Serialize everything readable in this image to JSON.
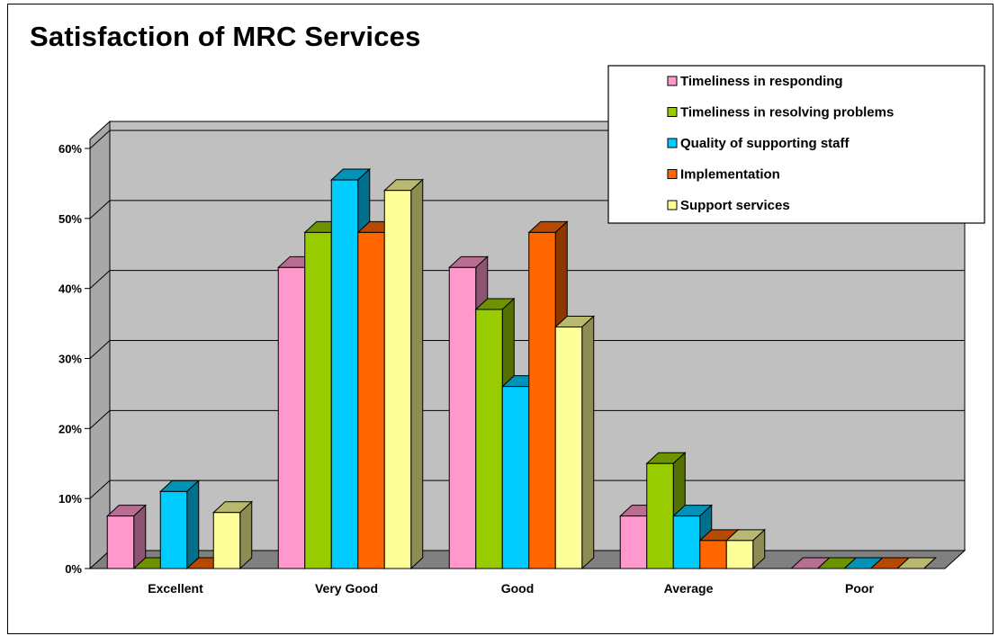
{
  "chart_data": {
    "type": "bar",
    "title": "Satisfaction of MRC Services",
    "categories": [
      "Excellent",
      "Very Good",
      "Good",
      "Average",
      "Poor"
    ],
    "series": [
      {
        "name": "Timeliness in responding",
        "color": "#ff99cc",
        "values": [
          7.5,
          43,
          43,
          7.5,
          0
        ]
      },
      {
        "name": "Timeliness in resolving problems",
        "color": "#99cc00",
        "values": [
          0,
          48,
          37,
          15,
          0
        ]
      },
      {
        "name": "Quality of supporting staff",
        "color": "#00ccff",
        "values": [
          11,
          55.5,
          26,
          7.5,
          0
        ]
      },
      {
        "name": "Implementation",
        "color": "#ff6600",
        "values": [
          0,
          48,
          48,
          4,
          0
        ]
      },
      {
        "name": "Support services",
        "color": "#ffff99",
        "values": [
          8,
          54,
          34.5,
          4,
          0
        ]
      }
    ],
    "yticks": [
      "0%",
      "10%",
      "20%",
      "30%",
      "40%",
      "50%",
      "60%"
    ],
    "ylim": [
      0,
      60
    ],
    "grid": true,
    "legend_position": "top-right",
    "colors": {
      "wall": "#c0c0c0",
      "floor": "#808080"
    }
  }
}
